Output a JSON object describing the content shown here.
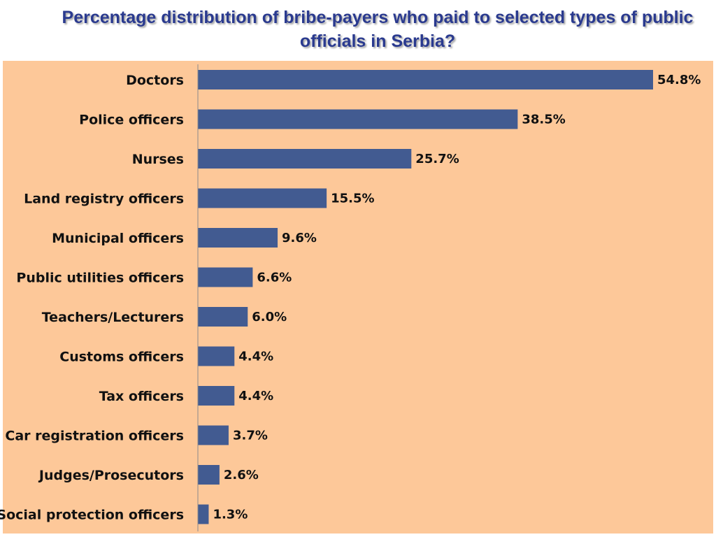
{
  "chart_data": {
    "type": "bar",
    "orientation": "horizontal",
    "title": "Percentage distribution of bribe-payers who paid to selected types of public officials in Serbia?",
    "categories": [
      "Doctors",
      "Police officers",
      "Nurses",
      "Land registry officers",
      "Municipal officers",
      "Public utilities officers",
      "Teachers/Lecturers",
      "Customs officers",
      "Tax officers",
      "Car registration officers",
      "Judges/Prosecutors",
      "Social protection officers"
    ],
    "values": [
      54.8,
      38.5,
      25.7,
      15.5,
      9.6,
      6.6,
      6.0,
      4.4,
      4.4,
      3.7,
      2.6,
      1.3
    ],
    "value_labels": [
      "54.8%",
      "38.5%",
      "25.7%",
      "15.5%",
      "9.6%",
      "6.6%",
      "6.0%",
      "4.4%",
      "4.4%",
      "3.7%",
      "2.6%",
      "1.3%"
    ],
    "unit": "%",
    "xlim": [
      0,
      60
    ],
    "grid": false,
    "legend": "none",
    "colors": {
      "bar": "#425b91",
      "background": "#fdc899",
      "title": "#2a3a8f"
    }
  }
}
